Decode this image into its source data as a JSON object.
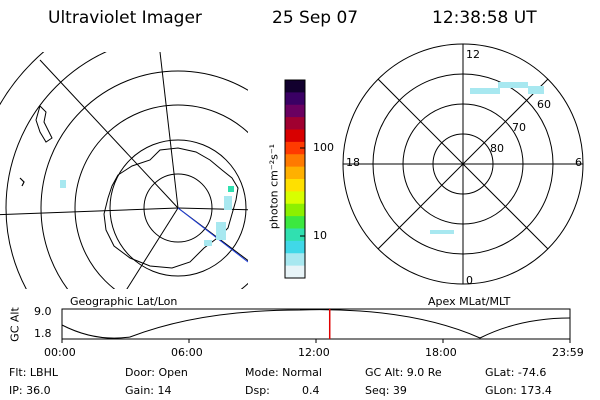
{
  "header": {
    "title": "Ultraviolet Imager",
    "date": "25 Sep 07",
    "time": "12:38:58 UT"
  },
  "colorbar": {
    "unit_label": "photon cm⁻²s⁻¹",
    "ticks": [
      "100",
      "10"
    ],
    "colors": [
      "#12002e",
      "#3a0064",
      "#6a0060",
      "#a00030",
      "#d80000",
      "#ff3a00",
      "#ff7a00",
      "#ffb000",
      "#ffe000",
      "#d8ff00",
      "#8cf000",
      "#3ce840",
      "#30e0b0",
      "#40d8e8",
      "#a8e8f0",
      "#e8f4f8"
    ]
  },
  "geo_panel": {
    "caption": "Geographic Lat/Lon"
  },
  "polar_panel": {
    "caption": "Apex MLat/MLT",
    "mlt_labels": {
      "top": "12",
      "left": "18",
      "right": "6",
      "bottom": "0"
    },
    "lat_labels": [
      "60",
      "70",
      "80"
    ]
  },
  "altitude_strip": {
    "ylabel": "GC Alt",
    "y_ticks": [
      "9.0",
      "1.8"
    ],
    "x_ticks": [
      "00:00",
      "06:00",
      "12:00",
      "18:00",
      "23:59"
    ],
    "current_time_fraction": 0.527,
    "marker_color": "#e00000"
  },
  "info": {
    "row1": [
      "Flt: LBHL",
      "Door: Open",
      "Mode: Normal",
      "GC Alt: 9.0 Re",
      "GLat: -74.6"
    ],
    "row2": [
      "IP: 36.0",
      "Gain: 14",
      "Dsp:",
      "0.4",
      "Seq: 39",
      "GLon: 173.4"
    ]
  }
}
